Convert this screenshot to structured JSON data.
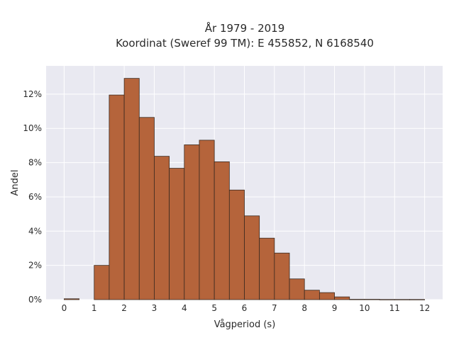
{
  "chart_data": {
    "type": "bar",
    "title_line1": "År 1979 - 2019",
    "title_line2": "Koordinat (Sweref 99 TM): E 455852, N 6168540",
    "xlabel": "Vågperiod (s)",
    "ylabel": "Andel",
    "xlim": [
      -0.6,
      12.6
    ],
    "ylim": [
      0,
      0.1365
    ],
    "bin_width": 0.5,
    "bins_left": [
      0,
      1,
      1.5,
      2,
      2.5,
      3,
      3.5,
      4,
      4.5,
      5,
      5.5,
      6,
      6.5,
      7,
      7.5,
      8,
      8.5,
      9,
      9.5,
      10,
      10.5,
      11,
      11.5
    ],
    "values": [
      0.0005,
      0.02,
      0.1195,
      0.1292,
      0.1064,
      0.0837,
      0.0767,
      0.0904,
      0.0931,
      0.0805,
      0.064,
      0.0489,
      0.0359,
      0.0272,
      0.0121,
      0.0055,
      0.0041,
      0.0016,
      0.0002,
      0.0002,
      0.0001,
      0.0001,
      0.0001
    ],
    "x_ticks": [
      "0",
      "1",
      "2",
      "3",
      "4",
      "5",
      "6",
      "7",
      "8",
      "9",
      "10",
      "11",
      "12"
    ],
    "y_ticks": [
      {
        "v": 0.0,
        "label": "0%"
      },
      {
        "v": 0.02,
        "label": "2%"
      },
      {
        "v": 0.04,
        "label": "4%"
      },
      {
        "v": 0.06,
        "label": "6%"
      },
      {
        "v": 0.08,
        "label": "8%"
      },
      {
        "v": 0.1,
        "label": "10%"
      },
      {
        "v": 0.12,
        "label": "12%"
      }
    ],
    "grid": true,
    "bar_color": "#b5643b",
    "bar_edge_color": "#3a2a20",
    "plot_background": "#e9e9f1"
  }
}
